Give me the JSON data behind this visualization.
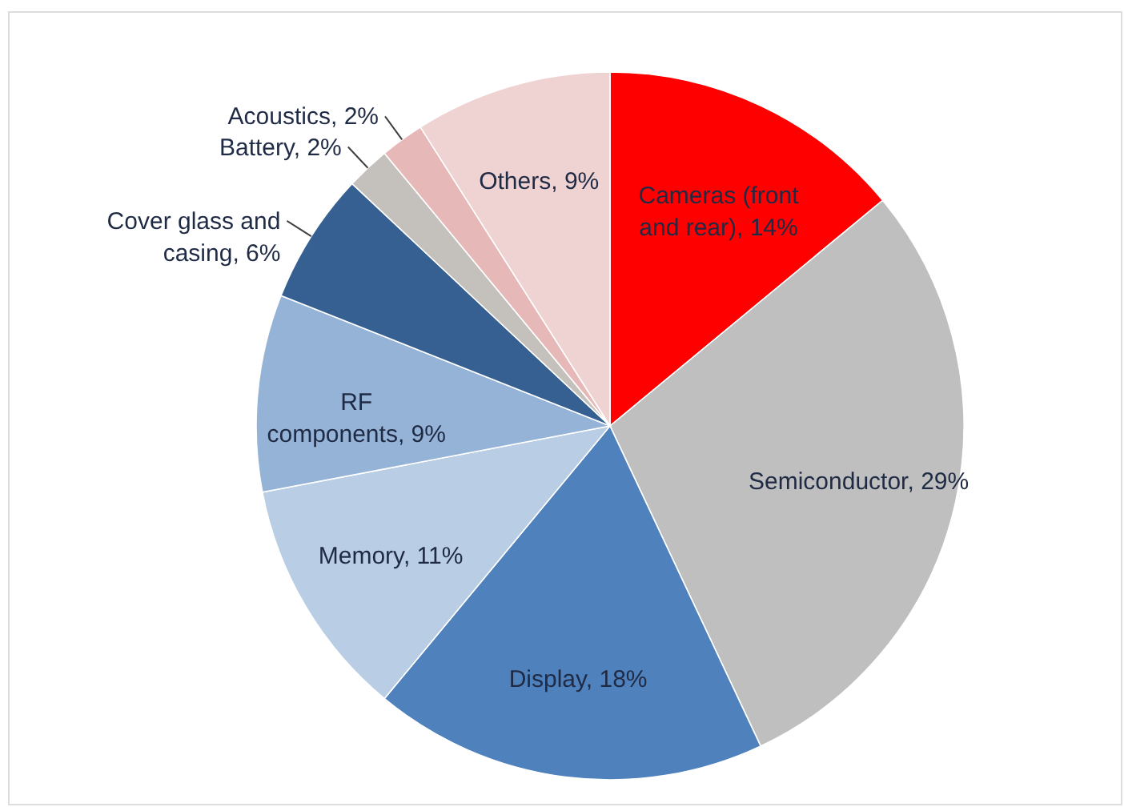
{
  "chart_data": {
    "type": "pie",
    "categories": [
      "Cameras (front and rear)",
      "Semiconductor",
      "Display",
      "Memory",
      "RF components",
      "Cover glass and casing",
      "Battery",
      "Acoustics",
      "Others"
    ],
    "values": [
      14,
      29,
      18,
      11,
      9,
      6,
      2,
      2,
      9
    ],
    "colors": [
      "#ff0000",
      "#bfbfbf",
      "#4f81bd",
      "#b9cde5",
      "#95b3d7",
      "#376092",
      "#c4c0bb",
      "#e6b9b8",
      "#efd3d2"
    ],
    "value_labels": [
      "14%",
      "29%",
      "18%",
      "11%",
      "9%",
      "6%",
      "2%",
      "2%",
      "9%"
    ]
  }
}
